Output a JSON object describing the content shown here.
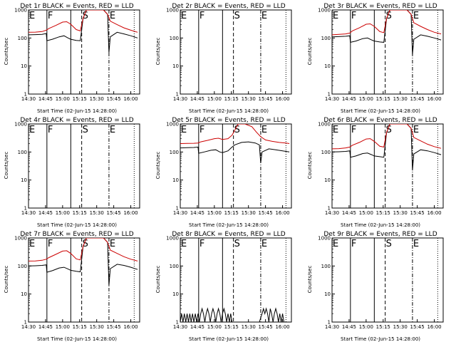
{
  "chart_data": {
    "type": "line",
    "scale": "log",
    "ylim": [
      1,
      1000
    ],
    "xlim": [
      14.5,
      16.13
    ],
    "ylabel": "Counts/sec",
    "xlabel": "Start Time (02-Jun-15 14:28:00)",
    "x_ticks": [
      {
        "v": 14.5,
        "label": "14:30"
      },
      {
        "v": 14.75,
        "label": "14:45"
      },
      {
        "v": 15.0,
        "label": "15:00"
      },
      {
        "v": 15.25,
        "label": "15:15"
      },
      {
        "v": 15.5,
        "label": "15:30"
      },
      {
        "v": 15.75,
        "label": "15:45"
      },
      {
        "v": 16.0,
        "label": "16:00"
      }
    ],
    "y_ticks": [
      {
        "v": 1,
        "label": "1"
      },
      {
        "v": 10,
        "label": "10"
      },
      {
        "v": 100,
        "label": "100"
      },
      {
        "v": 1000,
        "label": "1000"
      }
    ],
    "markers": [
      {
        "label": "E",
        "x": 14.5,
        "style": "solid"
      },
      {
        "label": "F",
        "x": 14.77,
        "style": "solid"
      },
      {
        "label": "",
        "x": 15.12,
        "style": "solid"
      },
      {
        "label": "S",
        "x": 15.28,
        "style": "dashed"
      },
      {
        "label": "E",
        "x": 15.68,
        "style": "dashdot"
      },
      {
        "label": "",
        "x": 16.05,
        "style": "dotted"
      }
    ],
    "series_names": {
      "black": "Events",
      "red": "LLD"
    },
    "colors": {
      "events": "#000000",
      "lld": "#cc0000",
      "axis": "#000000"
    },
    "panels": [
      {
        "title": "Det 1r BLACK = Events, RED = LLD",
        "events": [
          [
            14.5,
            130
          ],
          [
            14.6,
            132
          ],
          [
            14.7,
            135
          ],
          [
            14.76,
            145
          ],
          [
            14.77,
            80
          ],
          [
            14.85,
            90
          ],
          [
            14.95,
            110
          ],
          [
            15.02,
            120
          ],
          [
            15.08,
            100
          ],
          [
            15.12,
            90
          ],
          [
            15.2,
            82
          ],
          [
            15.26,
            80
          ],
          [
            15.3,
            500
          ],
          [
            15.35,
            1000
          ],
          [
            15.6,
            1000
          ],
          [
            15.66,
            700
          ],
          [
            15.68,
            30
          ],
          [
            15.7,
            110
          ],
          [
            15.8,
            160
          ],
          [
            15.9,
            140
          ],
          [
            16.0,
            120
          ],
          [
            16.1,
            100
          ]
        ],
        "lld": [
          [
            14.5,
            160
          ],
          [
            14.6,
            162
          ],
          [
            14.7,
            170
          ],
          [
            14.76,
            190
          ],
          [
            14.8,
            220
          ],
          [
            14.9,
            280
          ],
          [
            15.0,
            370
          ],
          [
            15.06,
            380
          ],
          [
            15.12,
            310
          ],
          [
            15.2,
            200
          ],
          [
            15.26,
            180
          ],
          [
            15.3,
            500
          ],
          [
            15.35,
            1000
          ],
          [
            15.6,
            1000
          ],
          [
            15.66,
            700
          ],
          [
            15.7,
            400
          ],
          [
            15.8,
            300
          ],
          [
            15.9,
            230
          ],
          [
            16.0,
            190
          ],
          [
            16.1,
            160
          ]
        ]
      },
      {
        "title": "Det 2r BLACK = Events, RED = LLD",
        "events": [],
        "lld": []
      },
      {
        "title": "Det 3r BLACK = Events, RED = LLD",
        "events": [
          [
            14.5,
            110
          ],
          [
            14.6,
            112
          ],
          [
            14.7,
            115
          ],
          [
            14.76,
            120
          ],
          [
            14.77,
            70
          ],
          [
            14.85,
            78
          ],
          [
            14.95,
            95
          ],
          [
            15.02,
            100
          ],
          [
            15.08,
            85
          ],
          [
            15.12,
            78
          ],
          [
            15.2,
            72
          ],
          [
            15.26,
            70
          ],
          [
            15.3,
            500
          ],
          [
            15.35,
            1000
          ],
          [
            15.6,
            1000
          ],
          [
            15.66,
            700
          ],
          [
            15.68,
            25
          ],
          [
            15.7,
            90
          ],
          [
            15.8,
            130
          ],
          [
            15.9,
            115
          ],
          [
            16.0,
            100
          ],
          [
            16.1,
            85
          ]
        ],
        "lld": [
          [
            14.5,
            130
          ],
          [
            14.6,
            135
          ],
          [
            14.7,
            140
          ],
          [
            14.76,
            150
          ],
          [
            14.8,
            180
          ],
          [
            14.9,
            230
          ],
          [
            15.0,
            310
          ],
          [
            15.06,
            320
          ],
          [
            15.12,
            260
          ],
          [
            15.2,
            170
          ],
          [
            15.26,
            155
          ],
          [
            15.3,
            500
          ],
          [
            15.35,
            1000
          ],
          [
            15.6,
            1000
          ],
          [
            15.66,
            700
          ],
          [
            15.7,
            350
          ],
          [
            15.8,
            260
          ],
          [
            15.9,
            200
          ],
          [
            16.0,
            160
          ],
          [
            16.1,
            140
          ]
        ]
      },
      {
        "title": "Det 4r BLACK = Events, RED = LLD",
        "events": [],
        "lld": []
      },
      {
        "title": "Det 5r BLACK = Events, RED = LLD",
        "events": [
          [
            14.5,
            140
          ],
          [
            14.6,
            142
          ],
          [
            14.7,
            145
          ],
          [
            14.76,
            150
          ],
          [
            14.77,
            90
          ],
          [
            14.85,
            100
          ],
          [
            14.95,
            115
          ],
          [
            15.02,
            120
          ],
          [
            15.08,
            100
          ],
          [
            15.12,
            95
          ],
          [
            15.2,
            110
          ],
          [
            15.26,
            150
          ],
          [
            15.3,
            180
          ],
          [
            15.4,
            220
          ],
          [
            15.5,
            230
          ],
          [
            15.6,
            210
          ],
          [
            15.66,
            180
          ],
          [
            15.68,
            40
          ],
          [
            15.7,
            100
          ],
          [
            15.8,
            130
          ],
          [
            15.9,
            120
          ],
          [
            16.0,
            110
          ],
          [
            16.1,
            100
          ]
        ],
        "lld": [
          [
            14.5,
            200
          ],
          [
            14.6,
            202
          ],
          [
            14.7,
            205
          ],
          [
            14.76,
            210
          ],
          [
            14.8,
            230
          ],
          [
            14.9,
            260
          ],
          [
            15.0,
            300
          ],
          [
            15.06,
            310
          ],
          [
            15.12,
            280
          ],
          [
            15.2,
            300
          ],
          [
            15.26,
            400
          ],
          [
            15.35,
            1000
          ],
          [
            15.45,
            1000
          ],
          [
            15.55,
            800
          ],
          [
            15.62,
            500
          ],
          [
            15.68,
            350
          ],
          [
            15.75,
            270
          ],
          [
            15.85,
            240
          ],
          [
            15.95,
            220
          ],
          [
            16.05,
            210
          ],
          [
            16.1,
            200
          ]
        ]
      },
      {
        "title": "Det 6r BLACK = Events, RED = LLD",
        "events": [
          [
            14.5,
            100
          ],
          [
            14.6,
            102
          ],
          [
            14.7,
            105
          ],
          [
            14.76,
            110
          ],
          [
            14.77,
            65
          ],
          [
            14.85,
            72
          ],
          [
            14.95,
            88
          ],
          [
            15.02,
            92
          ],
          [
            15.08,
            80
          ],
          [
            15.12,
            72
          ],
          [
            15.2,
            68
          ],
          [
            15.26,
            65
          ],
          [
            15.3,
            500
          ],
          [
            15.35,
            1000
          ],
          [
            15.6,
            1000
          ],
          [
            15.66,
            700
          ],
          [
            15.68,
            22
          ],
          [
            15.7,
            85
          ],
          [
            15.8,
            120
          ],
          [
            15.9,
            110
          ],
          [
            16.0,
            95
          ],
          [
            16.1,
            80
          ]
        ],
        "lld": [
          [
            14.5,
            130
          ],
          [
            14.6,
            132
          ],
          [
            14.7,
            140
          ],
          [
            14.76,
            150
          ],
          [
            14.8,
            175
          ],
          [
            14.9,
            220
          ],
          [
            15.0,
            290
          ],
          [
            15.06,
            300
          ],
          [
            15.12,
            240
          ],
          [
            15.2,
            160
          ],
          [
            15.26,
            150
          ],
          [
            15.3,
            500
          ],
          [
            15.35,
            1000
          ],
          [
            15.6,
            1000
          ],
          [
            15.66,
            700
          ],
          [
            15.7,
            330
          ],
          [
            15.8,
            250
          ],
          [
            15.9,
            190
          ],
          [
            16.0,
            155
          ],
          [
            16.1,
            135
          ]
        ]
      },
      {
        "title": "Det 7r BLACK = Events, RED = LLD",
        "events": [
          [
            14.5,
            100
          ],
          [
            14.6,
            102
          ],
          [
            14.7,
            105
          ],
          [
            14.76,
            110
          ],
          [
            14.77,
            60
          ],
          [
            14.85,
            68
          ],
          [
            14.95,
            85
          ],
          [
            15.02,
            90
          ],
          [
            15.08,
            78
          ],
          [
            15.12,
            70
          ],
          [
            15.2,
            65
          ],
          [
            15.26,
            62
          ],
          [
            15.3,
            500
          ],
          [
            15.35,
            1000
          ],
          [
            15.6,
            1000
          ],
          [
            15.66,
            700
          ],
          [
            15.68,
            20
          ],
          [
            15.7,
            80
          ],
          [
            15.8,
            115
          ],
          [
            15.9,
            105
          ],
          [
            16.0,
            90
          ],
          [
            16.1,
            75
          ]
        ],
        "lld": [
          [
            14.5,
            150
          ],
          [
            14.6,
            152
          ],
          [
            14.7,
            160
          ],
          [
            14.76,
            175
          ],
          [
            14.8,
            200
          ],
          [
            14.9,
            260
          ],
          [
            15.0,
            340
          ],
          [
            15.06,
            350
          ],
          [
            15.12,
            280
          ],
          [
            15.2,
            180
          ],
          [
            15.26,
            165
          ],
          [
            15.3,
            500
          ],
          [
            15.35,
            1000
          ],
          [
            15.6,
            1000
          ],
          [
            15.66,
            700
          ],
          [
            15.7,
            370
          ],
          [
            15.8,
            280
          ],
          [
            15.9,
            215
          ],
          [
            16.0,
            175
          ],
          [
            16.1,
            150
          ]
        ]
      },
      {
        "title": "Det 8r BLACK = Events, RED = LLD",
        "events": [
          [
            14.5,
            1
          ],
          [
            14.52,
            2
          ],
          [
            14.54,
            1
          ],
          [
            14.56,
            2
          ],
          [
            14.58,
            1
          ],
          [
            14.6,
            2
          ],
          [
            14.62,
            1
          ],
          [
            14.64,
            2
          ],
          [
            14.66,
            1
          ],
          [
            14.68,
            2
          ],
          [
            14.7,
            1
          ],
          [
            14.72,
            2
          ],
          [
            14.74,
            1
          ],
          [
            14.76,
            2
          ],
          [
            14.78,
            1
          ],
          [
            14.8,
            2
          ],
          [
            14.82,
            3
          ],
          [
            14.84,
            2
          ],
          [
            14.86,
            1
          ],
          [
            14.88,
            2
          ],
          [
            14.9,
            3
          ],
          [
            14.92,
            2
          ],
          [
            14.94,
            1
          ],
          [
            14.96,
            2
          ],
          [
            14.98,
            3
          ],
          [
            15.0,
            2
          ],
          [
            15.02,
            1
          ],
          [
            15.04,
            2
          ],
          [
            15.06,
            3
          ],
          [
            15.08,
            2
          ],
          [
            15.1,
            1
          ],
          [
            15.12,
            2
          ],
          [
            15.14,
            3
          ],
          [
            15.16,
            2
          ],
          [
            15.18,
            1
          ],
          [
            15.2,
            2
          ],
          [
            15.22,
            1
          ],
          [
            15.24,
            2
          ],
          [
            15.26,
            1
          ],
          [
            15.3,
            0.5
          ],
          [
            15.66,
            0.5
          ],
          [
            15.7,
            2
          ],
          [
            15.72,
            3
          ],
          [
            15.74,
            2
          ],
          [
            15.76,
            3
          ],
          [
            15.78,
            2
          ],
          [
            15.8,
            1
          ],
          [
            15.82,
            3
          ],
          [
            15.84,
            2
          ],
          [
            15.86,
            1
          ],
          [
            15.88,
            2
          ],
          [
            15.9,
            3
          ],
          [
            15.92,
            2
          ],
          [
            15.94,
            1
          ],
          [
            15.96,
            2
          ],
          [
            15.98,
            1
          ],
          [
            16.0,
            2
          ],
          [
            16.02,
            1
          ]
        ],
        "lld": []
      },
      {
        "title": "Det 9r BLACK = Events, RED = LLD",
        "events": [],
        "lld": []
      }
    ]
  }
}
